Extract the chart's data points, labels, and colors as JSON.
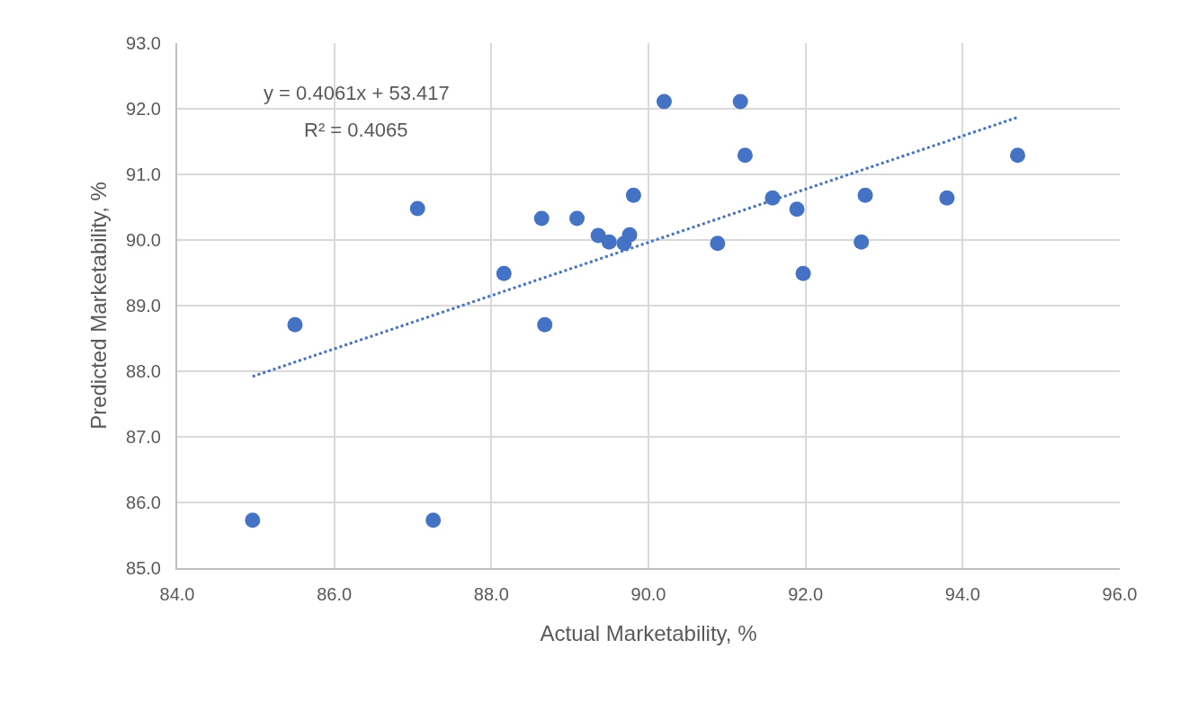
{
  "chart_data": {
    "type": "scatter",
    "xlabel": "Actual Marketability, %",
    "ylabel": "Predicted Marketability, %",
    "series": [
      {
        "color": "#4472c4",
        "marker": "circle",
        "x": [
          84.96,
          85.5,
          87.06,
          87.26,
          88.16,
          88.68,
          88.64,
          89.09,
          89.36,
          89.5,
          89.69,
          89.76,
          89.81,
          90.2,
          91.17,
          91.23,
          91.58,
          91.89,
          90.88,
          91.97,
          92.76,
          92.71,
          93.8,
          94.7
        ],
        "values": [
          85.73,
          88.71,
          90.48,
          85.73,
          89.49,
          88.71,
          90.33,
          90.33,
          90.07,
          89.97,
          89.95,
          90.08,
          90.68,
          92.11,
          92.11,
          91.29,
          90.64,
          90.47,
          89.95,
          89.49,
          90.68,
          89.97,
          90.64,
          91.29
        ]
      },
      {
        "type": "line",
        "color": "#4472c4",
        "line_style": "dotted",
        "marker": "none",
        "x": [
          84.96,
          94.7
        ],
        "values": [
          87.92,
          91.87
        ]
      }
    ],
    "annotations": [
      "y = 0.4061x + 53.417",
      "R² = 0.4065"
    ],
    "xlim": [
      84,
      96
    ],
    "xticks": [
      {
        "value": 84,
        "label": "84.0"
      },
      {
        "value": 86,
        "label": "86.0"
      },
      {
        "value": 88,
        "label": "88.0"
      },
      {
        "value": 90,
        "label": "90.0"
      },
      {
        "value": 92,
        "label": "92.0"
      },
      {
        "value": 94,
        "label": "94.0"
      },
      {
        "value": 96,
        "label": "96.0"
      }
    ],
    "ylim": [
      85,
      93
    ],
    "yticks": [
      {
        "value": 85,
        "label": "85.0"
      },
      {
        "value": 86,
        "label": "86.0"
      },
      {
        "value": 87,
        "label": "87.0"
      },
      {
        "value": 88,
        "label": "88.0"
      },
      {
        "value": 89,
        "label": "89.0"
      },
      {
        "value": 90,
        "label": "90.0"
      },
      {
        "value": 91,
        "label": "91.0"
      },
      {
        "value": 92,
        "label": "92.0"
      },
      {
        "value": 93,
        "label": "93.0"
      }
    ],
    "grid": true
  }
}
